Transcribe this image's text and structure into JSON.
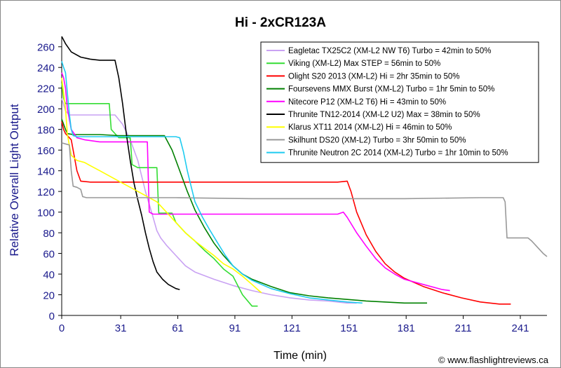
{
  "chart_data": {
    "type": "line",
    "title": "Hi - 2xCR123A",
    "xlabel": "Time (min)",
    "ylabel": "Relative Overall Light Output",
    "credit": "© www.flashlightreviews.ca",
    "xlim": [
      0,
      255
    ],
    "ylim": [
      0,
      270
    ],
    "xticks": [
      0,
      31,
      61,
      91,
      121,
      151,
      181,
      211,
      241
    ],
    "yticks": [
      0,
      20,
      40,
      60,
      80,
      100,
      120,
      140,
      160,
      180,
      200,
      220,
      240,
      260
    ],
    "grid": false,
    "legend_position": "top-right",
    "series": [
      {
        "name": "Eagletac TX25C2 (XM-L2 NW T6) Turbo = 42min to 50%",
        "color": "#c9a2f3",
        "points": [
          [
            0,
            210
          ],
          [
            2,
            198
          ],
          [
            4,
            194
          ],
          [
            10,
            194
          ],
          [
            20,
            194
          ],
          [
            28,
            194
          ],
          [
            32,
            185
          ],
          [
            36,
            170
          ],
          [
            40,
            150
          ],
          [
            44,
            120
          ],
          [
            48,
            95
          ],
          [
            50,
            82
          ],
          [
            52,
            75
          ],
          [
            55,
            68
          ],
          [
            60,
            58
          ],
          [
            65,
            48
          ],
          [
            70,
            42
          ],
          [
            80,
            35
          ],
          [
            90,
            29
          ],
          [
            100,
            24
          ],
          [
            110,
            20
          ],
          [
            120,
            17
          ],
          [
            130,
            15
          ],
          [
            140,
            14
          ],
          [
            150,
            12
          ],
          [
            155,
            12
          ]
        ]
      },
      {
        "name": "Viking (XM-L2) Max STEP = 56min to 50%",
        "color": "#33dd33",
        "points": [
          [
            0,
            225
          ],
          [
            1,
            210
          ],
          [
            2,
            205
          ],
          [
            10,
            205
          ],
          [
            25,
            205
          ],
          [
            26,
            180
          ],
          [
            30,
            172
          ],
          [
            36,
            172
          ],
          [
            37,
            146
          ],
          [
            40,
            143
          ],
          [
            50,
            143
          ],
          [
            51,
            99
          ],
          [
            58,
            99
          ],
          [
            60,
            90
          ],
          [
            65,
            80
          ],
          [
            70,
            72
          ],
          [
            75,
            63
          ],
          [
            80,
            55
          ],
          [
            85,
            45
          ],
          [
            90,
            38
          ],
          [
            95,
            20
          ],
          [
            100,
            9
          ],
          [
            103,
            9
          ]
        ]
      },
      {
        "name": "Olight S20 2013 (XM-L2) Hi = 2hr 35min to 50%",
        "color": "#ff0000",
        "points": [
          [
            0,
            188
          ],
          [
            1,
            180
          ],
          [
            2,
            176
          ],
          [
            5,
            170
          ],
          [
            8,
            140
          ],
          [
            10,
            130
          ],
          [
            15,
            129
          ],
          [
            40,
            129
          ],
          [
            80,
            129
          ],
          [
            120,
            129
          ],
          [
            145,
            129
          ],
          [
            150,
            130
          ],
          [
            152,
            120
          ],
          [
            155,
            100
          ],
          [
            160,
            78
          ],
          [
            165,
            62
          ],
          [
            170,
            50
          ],
          [
            175,
            42
          ],
          [
            180,
            36
          ],
          [
            190,
            28
          ],
          [
            200,
            22
          ],
          [
            210,
            17
          ],
          [
            220,
            13
          ],
          [
            230,
            11
          ],
          [
            236,
            11
          ]
        ]
      },
      {
        "name": "Foursevens MMX Burst (XM-L2) Turbo = 1hr 5min to 50%",
        "color": "#008000",
        "points": [
          [
            0,
            190
          ],
          [
            2,
            180
          ],
          [
            3,
            176
          ],
          [
            6,
            175
          ],
          [
            20,
            175
          ],
          [
            30,
            174
          ],
          [
            40,
            174
          ],
          [
            50,
            174
          ],
          [
            54,
            174
          ],
          [
            58,
            160
          ],
          [
            62,
            140
          ],
          [
            66,
            120
          ],
          [
            70,
            102
          ],
          [
            75,
            85
          ],
          [
            80,
            70
          ],
          [
            85,
            58
          ],
          [
            90,
            48
          ],
          [
            95,
            40
          ],
          [
            100,
            35
          ],
          [
            110,
            28
          ],
          [
            120,
            22
          ],
          [
            130,
            19
          ],
          [
            140,
            17
          ],
          [
            160,
            14
          ],
          [
            180,
            12
          ],
          [
            192,
            12
          ]
        ]
      },
      {
        "name": "Nitecore P12 (XM-L2 T6) Hi = 43min to 50%",
        "color": "#ff00ff",
        "points": [
          [
            0,
            235
          ],
          [
            1,
            230
          ],
          [
            2,
            220
          ],
          [
            3,
            200
          ],
          [
            5,
            180
          ],
          [
            8,
            172
          ],
          [
            12,
            170
          ],
          [
            20,
            168
          ],
          [
            30,
            168
          ],
          [
            45,
            168
          ],
          [
            46,
            100
          ],
          [
            48,
            98
          ],
          [
            80,
            98
          ],
          [
            120,
            98
          ],
          [
            145,
            98
          ],
          [
            148,
            100
          ],
          [
            150,
            95
          ],
          [
            155,
            80
          ],
          [
            160,
            67
          ],
          [
            165,
            55
          ],
          [
            170,
            46
          ],
          [
            175,
            40
          ],
          [
            180,
            35
          ],
          [
            190,
            30
          ],
          [
            200,
            25
          ],
          [
            204,
            24
          ]
        ]
      },
      {
        "name": "Thrunite TN12-2014 (XM-L2 U2) Max = 38min to 50%",
        "color": "#000000",
        "points": [
          [
            0,
            270
          ],
          [
            2,
            263
          ],
          [
            5,
            255
          ],
          [
            10,
            250
          ],
          [
            15,
            248
          ],
          [
            20,
            247
          ],
          [
            25,
            247
          ],
          [
            28,
            247
          ],
          [
            30,
            230
          ],
          [
            32,
            205
          ],
          [
            34,
            175
          ],
          [
            36,
            150
          ],
          [
            38,
            128
          ],
          [
            40,
            112
          ],
          [
            42,
            97
          ],
          [
            44,
            80
          ],
          [
            46,
            65
          ],
          [
            48,
            52
          ],
          [
            50,
            42
          ],
          [
            53,
            35
          ],
          [
            56,
            30
          ],
          [
            60,
            26
          ],
          [
            62,
            25
          ]
        ]
      },
      {
        "name": "Klarus XT11 2014 (XM-L2) Hi = 46min to 50%",
        "color": "#ffff00",
        "points": [
          [
            0,
            230
          ],
          [
            2,
            200
          ],
          [
            3,
            175
          ],
          [
            5,
            155
          ],
          [
            8,
            150
          ],
          [
            12,
            148
          ],
          [
            15,
            145
          ],
          [
            20,
            140
          ],
          [
            30,
            130
          ],
          [
            40,
            120
          ],
          [
            50,
            110
          ],
          [
            55,
            100
          ],
          [
            60,
            90
          ],
          [
            65,
            80
          ],
          [
            70,
            72
          ],
          [
            75,
            65
          ],
          [
            80,
            58
          ],
          [
            85,
            50
          ],
          [
            90,
            45
          ],
          [
            95,
            38
          ],
          [
            100,
            30
          ],
          [
            103,
            25
          ],
          [
            105,
            22
          ]
        ]
      },
      {
        "name": "Skilhunt DS20 (XM-L2) Turbo = 3hr 50min to 50%",
        "color": "#999999",
        "points": [
          [
            0,
            167
          ],
          [
            2,
            166
          ],
          [
            4,
            165
          ],
          [
            5,
            140
          ],
          [
            6,
            125
          ],
          [
            8,
            124
          ],
          [
            10,
            122
          ],
          [
            11,
            115
          ],
          [
            13,
            114
          ],
          [
            30,
            114
          ],
          [
            60,
            114
          ],
          [
            100,
            113
          ],
          [
            140,
            113
          ],
          [
            180,
            113
          ],
          [
            220,
            114
          ],
          [
            232,
            114
          ],
          [
            233,
            110
          ],
          [
            234,
            75
          ],
          [
            236,
            75
          ],
          [
            245,
            75
          ],
          [
            247,
            72
          ],
          [
            250,
            66
          ],
          [
            253,
            60
          ],
          [
            255,
            57
          ]
        ]
      },
      {
        "name": "Thrunite Neutron 2C 2014 (XM-L2) Turbo = 1hr 10min to 50%",
        "color": "#1ecbf0",
        "points": [
          [
            0,
            246
          ],
          [
            1,
            240
          ],
          [
            2,
            235
          ],
          [
            3,
            215
          ],
          [
            4,
            195
          ],
          [
            5,
            180
          ],
          [
            6,
            174
          ],
          [
            8,
            173
          ],
          [
            20,
            173
          ],
          [
            40,
            173
          ],
          [
            60,
            173
          ],
          [
            62,
            172
          ],
          [
            64,
            158
          ],
          [
            66,
            140
          ],
          [
            68,
            125
          ],
          [
            70,
            110
          ],
          [
            74,
            95
          ],
          [
            78,
            82
          ],
          [
            82,
            70
          ],
          [
            86,
            58
          ],
          [
            90,
            48
          ],
          [
            95,
            40
          ],
          [
            100,
            34
          ],
          [
            105,
            30
          ],
          [
            110,
            26
          ],
          [
            120,
            21
          ],
          [
            130,
            17
          ],
          [
            140,
            15
          ],
          [
            150,
            13
          ],
          [
            158,
            12
          ]
        ]
      }
    ]
  }
}
